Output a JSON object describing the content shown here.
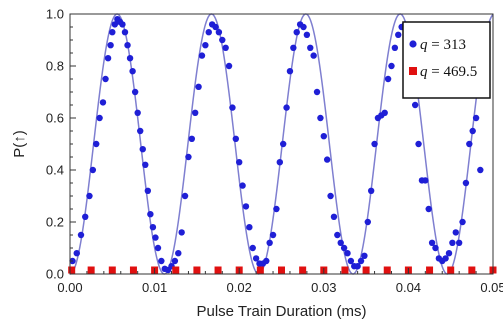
{
  "chart_data": {
    "type": "scatter",
    "xlabel": "Pulse Train Duration (ms)",
    "ylabel": "P(↑)",
    "xlim": [
      0.0,
      0.05
    ],
    "ylim": [
      0.0,
      1.0
    ],
    "x_ticks": [
      "0.00",
      "0.01",
      "0.02",
      "0.03",
      "0.04",
      "0.05"
    ],
    "y_ticks": [
      "0.0",
      "0.2",
      "0.4",
      "0.6",
      "0.8",
      "1.0"
    ],
    "grid": false,
    "legend_position": "top-right",
    "series": [
      {
        "name": "q = 313",
        "legend_var": "q",
        "legend_value": "= 313",
        "marker": "circle",
        "color": "#1f1fd6",
        "points": [
          [
            0.0003,
            0.05
          ],
          [
            0.0008,
            0.08
          ],
          [
            0.0013,
            0.15
          ],
          [
            0.0018,
            0.22
          ],
          [
            0.0023,
            0.3
          ],
          [
            0.0027,
            0.4
          ],
          [
            0.0031,
            0.5
          ],
          [
            0.0035,
            0.6
          ],
          [
            0.0039,
            0.66
          ],
          [
            0.0042,
            0.75
          ],
          [
            0.0045,
            0.83
          ],
          [
            0.0048,
            0.88
          ],
          [
            0.005,
            0.93
          ],
          [
            0.0053,
            0.96
          ],
          [
            0.0056,
            0.98
          ],
          [
            0.0059,
            0.97
          ],
          [
            0.0062,
            0.96
          ],
          [
            0.0065,
            0.93
          ],
          [
            0.0068,
            0.88
          ],
          [
            0.0071,
            0.83
          ],
          [
            0.0074,
            0.78
          ],
          [
            0.0077,
            0.7
          ],
          [
            0.008,
            0.62
          ],
          [
            0.0083,
            0.55
          ],
          [
            0.0086,
            0.48
          ],
          [
            0.0089,
            0.42
          ],
          [
            0.0092,
            0.32
          ],
          [
            0.0095,
            0.23
          ],
          [
            0.0098,
            0.18
          ],
          [
            0.0101,
            0.14
          ],
          [
            0.0104,
            0.1
          ],
          [
            0.0108,
            0.05
          ],
          [
            0.0112,
            0.02
          ],
          [
            0.0116,
            0.01
          ],
          [
            0.012,
            0.03
          ],
          [
            0.0124,
            0.05
          ],
          [
            0.0128,
            0.08
          ],
          [
            0.0132,
            0.16
          ],
          [
            0.0136,
            0.3
          ],
          [
            0.014,
            0.45
          ],
          [
            0.0144,
            0.52
          ],
          [
            0.0148,
            0.62
          ],
          [
            0.0152,
            0.72
          ],
          [
            0.0156,
            0.84
          ],
          [
            0.016,
            0.88
          ],
          [
            0.0164,
            0.93
          ],
          [
            0.0168,
            0.96
          ],
          [
            0.0172,
            0.95
          ],
          [
            0.0176,
            0.93
          ],
          [
            0.018,
            0.9
          ],
          [
            0.0184,
            0.87
          ],
          [
            0.0188,
            0.8
          ],
          [
            0.0192,
            0.64
          ],
          [
            0.0196,
            0.52
          ],
          [
            0.02,
            0.43
          ],
          [
            0.0204,
            0.34
          ],
          [
            0.0208,
            0.26
          ],
          [
            0.0212,
            0.18
          ],
          [
            0.0216,
            0.1
          ],
          [
            0.022,
            0.06
          ],
          [
            0.0224,
            0.04
          ],
          [
            0.0228,
            0.04
          ],
          [
            0.0232,
            0.05
          ],
          [
            0.0236,
            0.12
          ],
          [
            0.024,
            0.15
          ],
          [
            0.0244,
            0.25
          ],
          [
            0.0248,
            0.43
          ],
          [
            0.0252,
            0.5
          ],
          [
            0.0256,
            0.64
          ],
          [
            0.026,
            0.78
          ],
          [
            0.0264,
            0.87
          ],
          [
            0.0268,
            0.93
          ],
          [
            0.0272,
            0.96
          ],
          [
            0.0276,
            0.95
          ],
          [
            0.028,
            0.92
          ],
          [
            0.0284,
            0.87
          ],
          [
            0.0288,
            0.84
          ],
          [
            0.0292,
            0.7
          ],
          [
            0.0296,
            0.6
          ],
          [
            0.03,
            0.53
          ],
          [
            0.0304,
            0.44
          ],
          [
            0.0308,
            0.3
          ],
          [
            0.0312,
            0.22
          ],
          [
            0.0316,
            0.15
          ],
          [
            0.032,
            0.12
          ],
          [
            0.0324,
            0.1
          ],
          [
            0.0328,
            0.08
          ],
          [
            0.0332,
            0.05
          ],
          [
            0.0336,
            0.03
          ],
          [
            0.034,
            0.03
          ],
          [
            0.0344,
            0.05
          ],
          [
            0.0348,
            0.07
          ],
          [
            0.0352,
            0.2
          ],
          [
            0.0356,
            0.32
          ],
          [
            0.036,
            0.5
          ],
          [
            0.0364,
            0.6
          ],
          [
            0.0368,
            0.61
          ],
          [
            0.0372,
            0.62
          ],
          [
            0.0376,
            0.75
          ],
          [
            0.038,
            0.8
          ],
          [
            0.0384,
            0.87
          ],
          [
            0.0388,
            0.92
          ],
          [
            0.0392,
            0.95
          ],
          [
            0.0396,
            0.96
          ],
          [
            0.04,
            0.9
          ],
          [
            0.0404,
            0.85
          ],
          [
            0.0408,
            0.65
          ],
          [
            0.0412,
            0.5
          ],
          [
            0.0416,
            0.36
          ],
          [
            0.042,
            0.36
          ],
          [
            0.0424,
            0.25
          ],
          [
            0.0428,
            0.12
          ],
          [
            0.0432,
            0.1
          ],
          [
            0.0436,
            0.06
          ],
          [
            0.044,
            0.05
          ],
          [
            0.0444,
            0.06
          ],
          [
            0.0448,
            0.08
          ],
          [
            0.0452,
            0.12
          ],
          [
            0.0456,
            0.16
          ],
          [
            0.046,
            0.12
          ],
          [
            0.0464,
            0.2
          ],
          [
            0.0468,
            0.35
          ],
          [
            0.0472,
            0.5
          ],
          [
            0.0476,
            0.55
          ],
          [
            0.048,
            0.6
          ],
          [
            0.0485,
            0.4
          ]
        ]
      },
      {
        "name": "q = 469.5",
        "legend_var": "q",
        "legend_value": "= 469.5",
        "marker": "square",
        "color": "#e01010",
        "points": [
          [
            0.0002,
            0.01
          ],
          [
            0.0025,
            0.0
          ],
          [
            0.005,
            0.01
          ],
          [
            0.0075,
            0.0
          ],
          [
            0.01,
            0.01
          ],
          [
            0.0125,
            0.01
          ],
          [
            0.015,
            0.0
          ],
          [
            0.0175,
            0.01
          ],
          [
            0.02,
            0.01
          ],
          [
            0.0225,
            0.0
          ],
          [
            0.025,
            0.01
          ],
          [
            0.0275,
            0.01
          ],
          [
            0.03,
            0.0
          ],
          [
            0.0325,
            0.01
          ],
          [
            0.035,
            0.01
          ],
          [
            0.0375,
            0.0
          ],
          [
            0.04,
            0.01
          ],
          [
            0.0425,
            0.01
          ],
          [
            0.045,
            0.0
          ],
          [
            0.0475,
            0.01
          ],
          [
            0.05,
            0.01
          ]
        ]
      }
    ],
    "fit_curve": {
      "function": "sin^2",
      "period_ms": 0.01115,
      "amplitude": 1.0,
      "color": "#7f7fd0"
    }
  }
}
